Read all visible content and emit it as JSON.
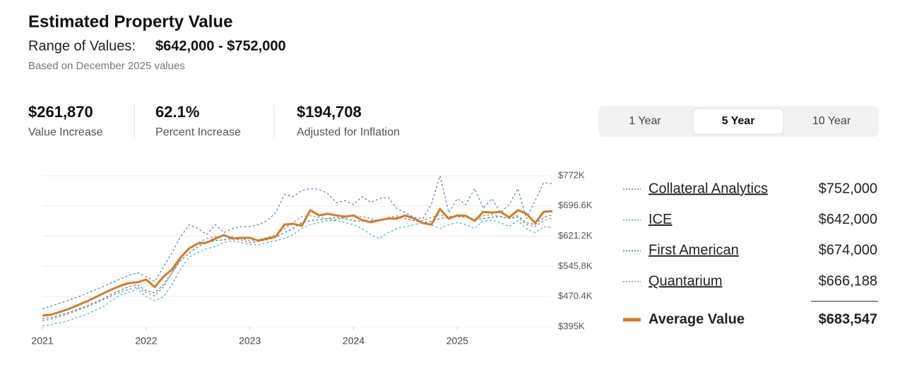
{
  "header": {
    "title": "Estimated Property Value",
    "range_label": "Range of Values:",
    "range_value": "$642,000 - $752,000",
    "subtitle": "Based on December 2025 values"
  },
  "stats": [
    {
      "value": "$261,870",
      "label": "Value Increase"
    },
    {
      "value": "62.1%",
      "label": "Percent Increase"
    },
    {
      "value": "$194,708",
      "label": "Adjusted for Inflation"
    }
  ],
  "tabs": {
    "items": [
      "1 Year",
      "5 Year",
      "10 Year"
    ],
    "selected": 1
  },
  "chart_data": {
    "type": "line",
    "x": [
      2021,
      2021.083,
      2021.167,
      2021.25,
      2021.333,
      2021.417,
      2021.5,
      2021.583,
      2021.667,
      2021.75,
      2021.833,
      2021.917,
      2022,
      2022.083,
      2022.167,
      2022.25,
      2022.333,
      2022.417,
      2022.5,
      2022.583,
      2022.667,
      2022.75,
      2022.833,
      2022.917,
      2023,
      2023.083,
      2023.167,
      2023.25,
      2023.333,
      2023.417,
      2023.5,
      2023.583,
      2023.667,
      2023.75,
      2023.833,
      2023.917,
      2024,
      2024.083,
      2024.167,
      2024.25,
      2024.333,
      2024.417,
      2024.5,
      2024.583,
      2024.667,
      2024.75,
      2024.833,
      2024.917,
      2025,
      2025.083,
      2025.167,
      2025.25,
      2025.333,
      2025.417,
      2025.5,
      2025.583,
      2025.667,
      2025.75,
      2025.833,
      2025.917
    ],
    "xlim": [
      2021,
      2025.917
    ],
    "xticks": [
      2021,
      2022,
      2023,
      2024,
      2025
    ],
    "ylim": [
      395000,
      772000
    ],
    "yticks": [
      {
        "value": 395000,
        "label": "$395K"
      },
      {
        "value": 470400,
        "label": "$470.4K"
      },
      {
        "value": 545800,
        "label": "$545.8K"
      },
      {
        "value": 621200,
        "label": "$621.2K"
      },
      {
        "value": 696600,
        "label": "$696.6K"
      },
      {
        "value": 772000,
        "label": "$772K"
      }
    ],
    "grid": true,
    "series": [
      {
        "name": "Collateral Analytics",
        "color": "#5b7fbf",
        "dashed": true,
        "latest_label": "$752,000",
        "values": [
          440000,
          447000,
          454000,
          461000,
          469000,
          477000,
          486000,
          495000,
          505000,
          514000,
          523000,
          530000,
          520000,
          508000,
          545000,
          580000,
          620000,
          650000,
          640000,
          625000,
          650000,
          630000,
          640000,
          645000,
          645000,
          650000,
          660000,
          680000,
          725000,
          720000,
          735000,
          740000,
          738000,
          728000,
          705000,
          710000,
          700000,
          720000,
          705000,
          715000,
          718000,
          690000,
          680000,
          668000,
          665000,
          700000,
          772000,
          680000,
          715000,
          700000,
          740000,
          690000,
          715000,
          680000,
          700000,
          740000,
          665000,
          710000,
          755000,
          752000
        ]
      },
      {
        "name": "ICE",
        "color": "#3bb8c4",
        "dashed": true,
        "latest_label": "$642,000",
        "values": [
          398000,
          400000,
          405000,
          410000,
          418000,
          425000,
          435000,
          445000,
          460000,
          475000,
          480000,
          490000,
          470000,
          460000,
          470000,
          500000,
          540000,
          570000,
          580000,
          590000,
          595000,
          605000,
          610000,
          605000,
          600000,
          600000,
          605000,
          610000,
          615000,
          625000,
          640000,
          650000,
          655000,
          660000,
          660000,
          655000,
          650000,
          640000,
          625000,
          615000,
          630000,
          640000,
          645000,
          650000,
          655000,
          650000,
          640000,
          650000,
          655000,
          650000,
          640000,
          660000,
          660000,
          655000,
          645000,
          660000,
          640000,
          630000,
          645000,
          642000
        ]
      },
      {
        "name": "First American",
        "color": "#2e7f8a",
        "dashed": true,
        "latest_label": "$674,000",
        "values": [
          415000,
          418000,
          424000,
          430000,
          438000,
          446000,
          455000,
          465000,
          476000,
          486000,
          495000,
          500000,
          485000,
          480000,
          500000,
          530000,
          560000,
          580000,
          595000,
          605000,
          610000,
          612000,
          615000,
          612000,
          605000,
          608000,
          612000,
          618000,
          630000,
          640000,
          655000,
          660000,
          662000,
          665000,
          668000,
          665000,
          660000,
          658000,
          660000,
          662000,
          665000,
          668000,
          665000,
          660000,
          655000,
          658000,
          665000,
          668000,
          670000,
          668000,
          662000,
          665000,
          668000,
          670000,
          665000,
          672000,
          655000,
          650000,
          668000,
          674000
        ]
      },
      {
        "name": "Quantarium",
        "color": "#8a8a8a",
        "dashed": true,
        "latest_label": "$666,188",
        "values": [
          410000,
          414000,
          420000,
          427000,
          435000,
          443000,
          452000,
          462000,
          472000,
          481000,
          488000,
          494000,
          480000,
          472000,
          495000,
          530000,
          565000,
          590000,
          605000,
          615000,
          620000,
          622000,
          620000,
          615000,
          610000,
          612000,
          618000,
          625000,
          640000,
          655000,
          670000,
          672000,
          668000,
          665000,
          662000,
          668000,
          672000,
          670000,
          665000,
          660000,
          668000,
          672000,
          670000,
          665000,
          660000,
          668000,
          675000,
          670000,
          672000,
          668000,
          665000,
          672000,
          675000,
          670000,
          665000,
          668000,
          650000,
          645000,
          660000,
          666188
        ]
      },
      {
        "name": "Average Value",
        "color": "#d97a25",
        "dashed": false,
        "latest_label": "$683,547",
        "values": [
          423000,
          425000,
          432000,
          439000,
          448000,
          457000,
          467000,
          478000,
          488000,
          497000,
          504000,
          506000,
          513000,
          494000,
          520000,
          538000,
          568000,
          591000,
          603000,
          605000,
          615000,
          624000,
          615000,
          617000,
          617000,
          610000,
          615000,
          620000,
          650000,
          652000,
          647000,
          686000,
          673000,
          677000,
          673000,
          670000,
          673000,
          661000,
          656000,
          661000,
          665000,
          665000,
          673000,
          665000,
          654000,
          650000,
          689000,
          665000,
          673000,
          672000,
          659000,
          682000,
          680000,
          682000,
          668000,
          686000,
          677000,
          654000,
          682000,
          683547
        ]
      }
    ]
  }
}
